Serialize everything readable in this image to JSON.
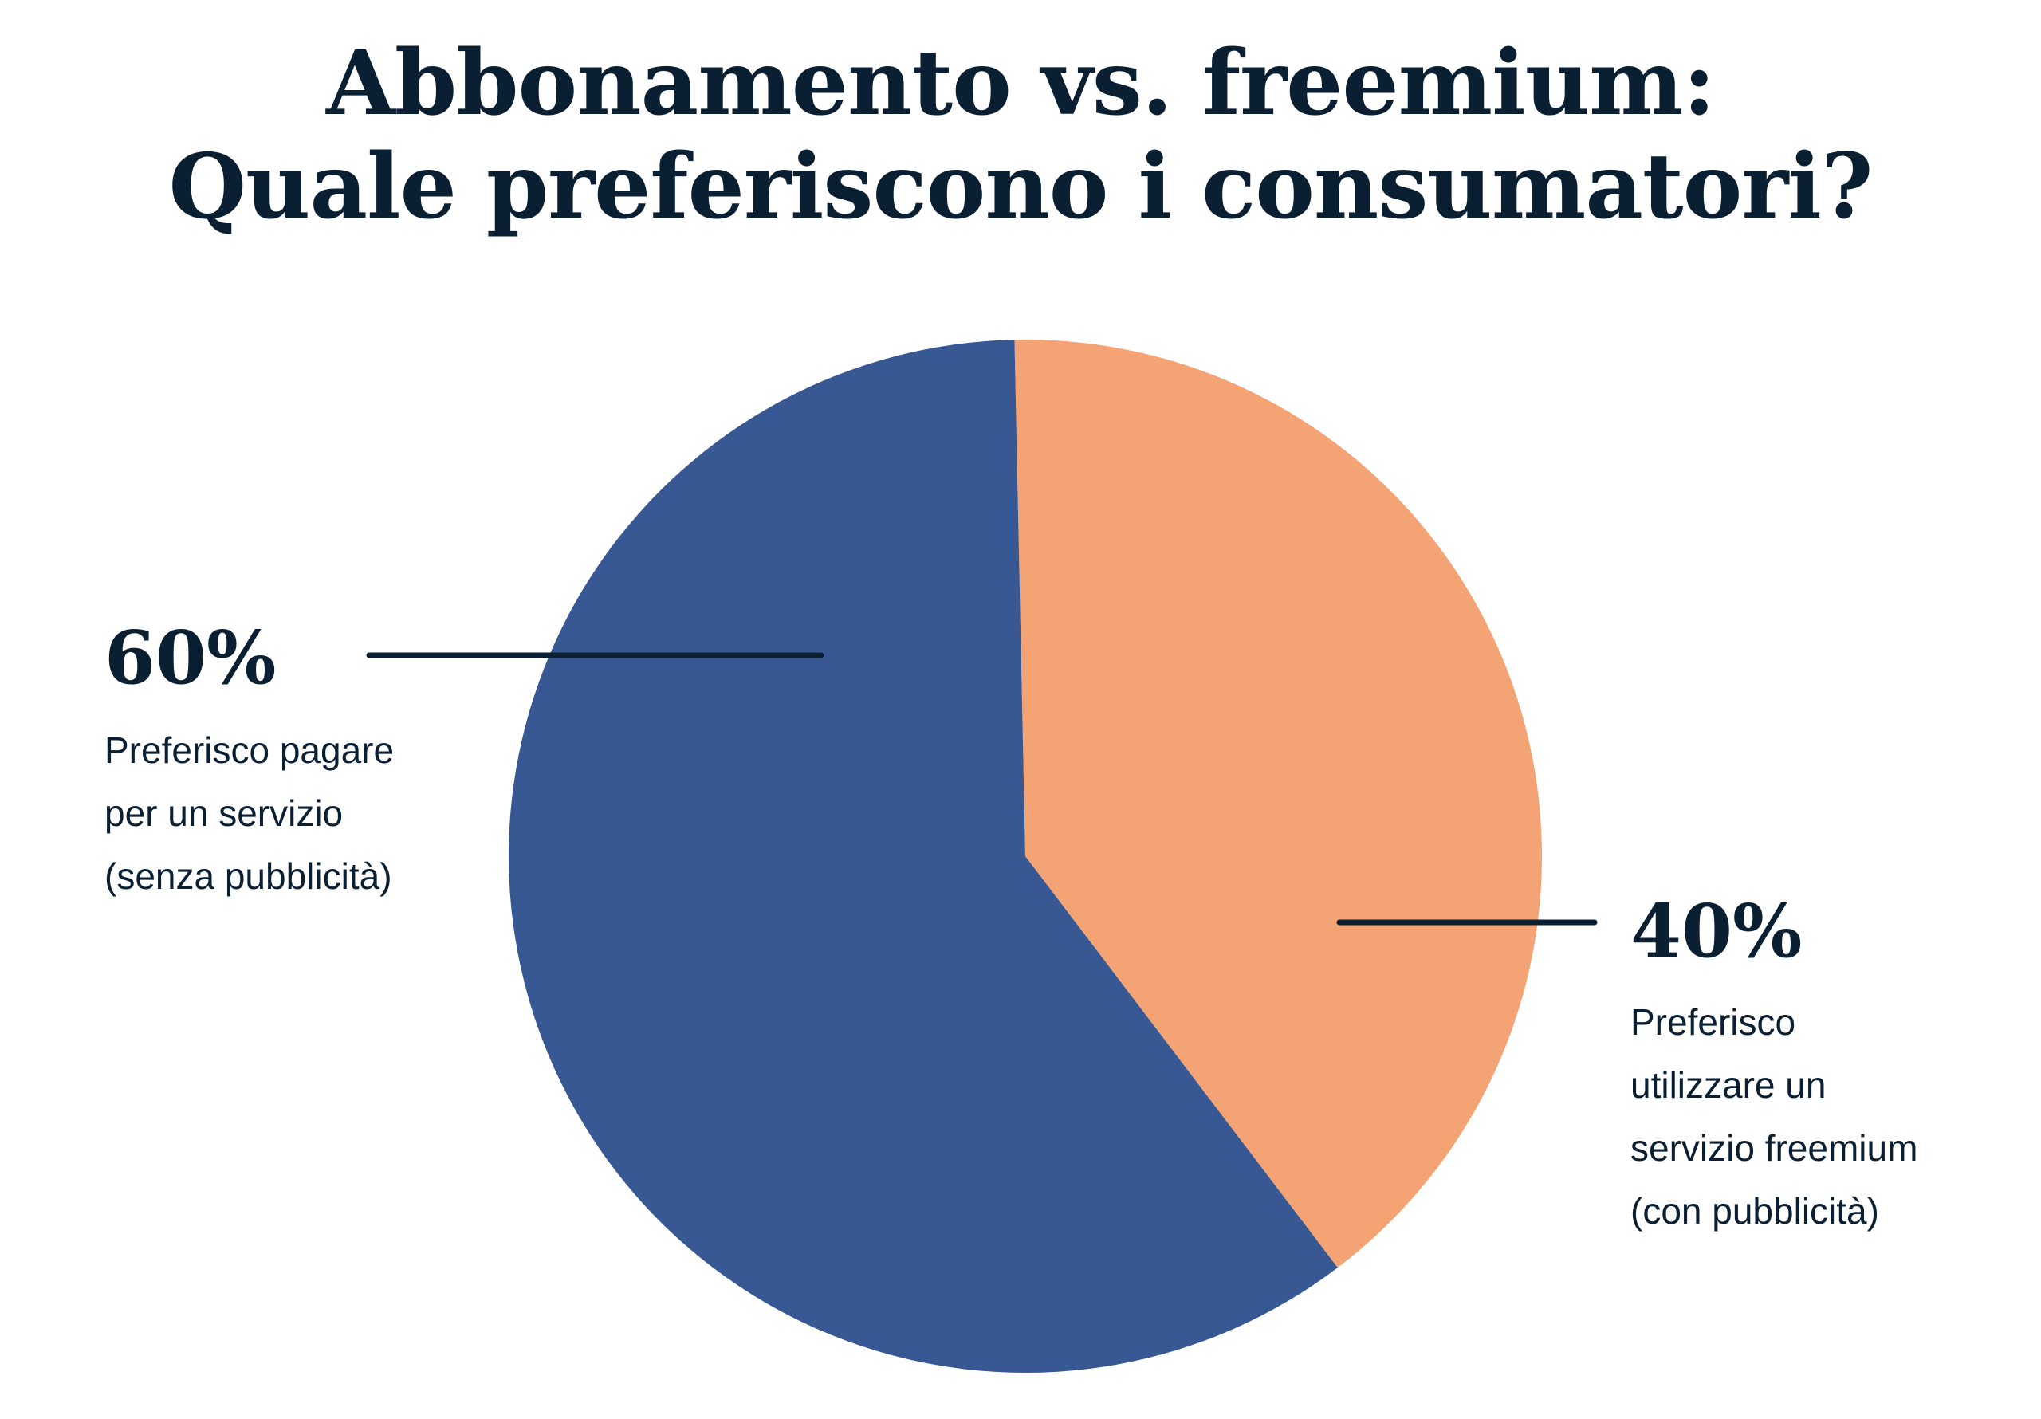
{
  "chart_data": {
    "type": "pie",
    "title_lines": [
      "Abbonamento vs. freemium:",
      "Quale preferiscono i consumatori?"
    ],
    "slices": [
      {
        "value": 40,
        "label": "40%",
        "description": [
          "Preferisco",
          "utilizzare un",
          "servizio freemium",
          "(con pubblicità)"
        ],
        "color": "#F4A375"
      },
      {
        "value": 60,
        "label": "60%",
        "description": [
          "Preferisco pagare",
          "per un servizio",
          "(senza pubblicità)"
        ],
        "color": "#385893"
      }
    ],
    "start_angle_deg": -1.2,
    "direction": "clockwise"
  },
  "colors": {
    "text": "#0B1F33",
    "leader": "#0B1F33"
  }
}
